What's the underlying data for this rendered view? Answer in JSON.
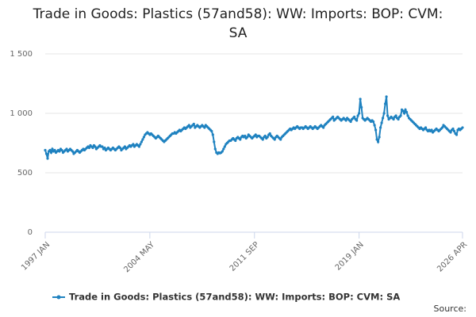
{
  "chart_data": {
    "type": "line",
    "title": "Trade in Goods: Plastics (57and58): WW: Imports: BOP: CVM: SA",
    "source": "Source:",
    "categories": [
      "1997 JAN",
      null,
      null,
      null,
      null,
      null,
      null,
      null,
      null,
      null,
      null,
      null,
      null,
      null,
      null,
      null,
      null,
      null,
      null,
      null,
      null,
      null,
      null,
      null,
      null,
      null,
      null,
      null,
      null,
      null,
      null,
      null,
      null,
      null,
      null,
      null,
      null,
      null,
      null,
      null,
      null,
      null,
      null,
      null,
      null,
      null,
      null,
      null,
      null,
      null,
      null,
      null,
      null,
      null,
      null,
      null,
      null,
      null,
      null,
      null,
      null,
      null,
      null,
      null,
      null,
      null,
      null,
      null,
      null,
      null,
      null,
      null,
      null,
      null,
      null,
      null,
      null,
      null,
      null,
      null,
      null,
      null,
      null,
      null,
      null,
      null,
      null,
      null,
      "2004 MAY",
      null,
      null,
      null,
      null,
      null,
      null,
      null,
      null,
      null,
      null,
      null,
      null,
      null,
      null,
      null,
      null,
      null,
      null,
      null,
      null,
      null,
      null,
      null,
      null,
      null,
      null,
      null,
      null,
      null,
      null,
      null,
      null,
      null,
      null,
      null,
      null,
      null,
      null,
      null,
      null,
      null,
      null,
      null,
      null,
      null,
      null,
      null,
      null,
      null,
      null,
      null,
      null,
      null,
      null,
      null,
      null,
      null,
      null,
      null,
      null,
      null,
      null,
      null,
      null,
      null,
      null,
      null,
      null,
      null,
      null,
      null,
      null,
      null,
      null,
      null,
      null,
      null,
      null,
      null,
      null,
      null,
      null,
      null,
      null,
      null,
      null,
      null,
      "2011 SEP",
      null,
      null,
      null,
      null,
      null,
      null,
      null,
      null,
      null,
      null,
      null,
      null,
      null,
      null,
      null,
      null,
      null,
      null,
      null,
      null,
      null,
      null,
      null,
      null,
      null,
      null,
      null,
      null,
      null,
      null,
      null,
      null,
      null,
      null,
      null,
      null,
      null,
      null,
      null,
      null,
      null,
      null,
      null,
      null,
      null,
      null,
      null,
      null,
      null,
      null,
      null,
      null,
      null,
      null,
      null,
      null,
      null,
      null,
      null,
      null,
      null,
      null,
      null,
      null,
      null,
      null,
      null,
      null,
      null,
      null,
      null,
      null,
      null,
      null,
      null,
      null,
      null,
      null,
      null,
      null,
      null,
      null,
      null,
      null,
      null,
      null,
      null,
      "2019 JAN",
      null,
      null,
      null,
      null,
      null,
      null,
      null,
      null,
      null,
      null,
      null,
      null,
      null,
      null,
      null,
      null,
      null,
      null,
      null,
      null,
      null,
      null,
      null,
      null,
      null,
      null,
      null,
      null,
      null,
      null,
      null,
      null,
      null,
      null,
      null,
      null,
      null,
      null,
      null,
      null,
      null,
      null,
      null,
      null,
      null,
      null,
      null,
      null,
      null,
      null,
      null,
      null,
      null,
      null,
      null,
      null,
      null,
      null,
      null,
      null,
      null,
      null,
      null,
      null,
      null,
      null,
      null,
      null,
      null,
      null,
      null,
      null,
      null,
      null,
      null,
      null,
      null,
      null,
      null,
      null,
      null,
      null,
      null,
      null,
      null,
      null,
      "2026 APR"
    ],
    "series": [
      {
        "name": "Trade in Goods: Plastics (57and58): WW: Imports: BOP: CVM: SA",
        "color": "#1f82c0",
        "values": [
          690,
          660,
          620,
          680,
          690,
          670,
          700,
          680,
          690,
          670,
          680,
          690,
          680,
          700,
          690,
          670,
          680,
          690,
          700,
          680,
          690,
          700,
          690,
          680,
          660,
          670,
          680,
          690,
          680,
          670,
          680,
          690,
          700,
          690,
          700,
          710,
          720,
          710,
          730,
          720,
          710,
          730,
          720,
          700,
          710,
          720,
          730,
          720,
          720,
          700,
          710,
          690,
          700,
          710,
          700,
          690,
          700,
          710,
          700,
          690,
          700,
          710,
          720,
          710,
          690,
          700,
          710,
          720,
          700,
          710,
          720,
          730,
          720,
          730,
          740,
          720,
          730,
          740,
          730,
          720,
          740,
          760,
          780,
          800,
          820,
          830,
          840,
          830,
          820,
          830,
          820,
          810,
          800,
          790,
          800,
          810,
          800,
          790,
          780,
          770,
          760,
          770,
          780,
          790,
          800,
          810,
          820,
          830,
          830,
          840,
          830,
          840,
          850,
          860,
          850,
          860,
          870,
          880,
          870,
          880,
          890,
          900,
          880,
          890,
          900,
          910,
          880,
          890,
          900,
          890,
          880,
          890,
          900,
          890,
          880,
          900,
          890,
          880,
          870,
          860,
          850,
          820,
          760,
          700,
          670,
          660,
          670,
          665,
          670,
          680,
          700,
          720,
          740,
          750,
          760,
          770,
          770,
          780,
          790,
          780,
          770,
          790,
          800,
          790,
          780,
          800,
          810,
          800,
          810,
          790,
          800,
          820,
          810,
          800,
          790,
          800,
          810,
          820,
          800,
          810,
          810,
          800,
          790,
          780,
          800,
          810,
          790,
          800,
          820,
          830,
          810,
          800,
          790,
          780,
          800,
          810,
          800,
          790,
          780,
          800,
          810,
          820,
          830,
          840,
          850,
          860,
          870,
          860,
          870,
          880,
          870,
          880,
          890,
          880,
          870,
          880,
          880,
          870,
          880,
          890,
          880,
          870,
          880,
          890,
          880,
          870,
          880,
          890,
          880,
          870,
          880,
          890,
          900,
          890,
          880,
          900,
          910,
          920,
          930,
          940,
          950,
          960,
          970,
          940,
          950,
          960,
          970,
          960,
          950,
          940,
          950,
          960,
          950,
          940,
          960,
          950,
          940,
          930,
          950,
          960,
          970,
          950,
          940,
          980,
          1000,
          1120,
          1050,
          960,
          950,
          940,
          950,
          960,
          950,
          940,
          930,
          940,
          930,
          900,
          860,
          780,
          760,
          800,
          880,
          920,
          960,
          1000,
          1080,
          1140,
          980,
          950,
          960,
          970,
          960,
          950,
          970,
          980,
          960,
          950,
          970,
          980,
          1030,
          1020,
          1000,
          1030,
          1010,
          980,
          960,
          950,
          940,
          930,
          920,
          910,
          900,
          890,
          880,
          870,
          880,
          870,
          860,
          870,
          880,
          860,
          850,
          860,
          850,
          860,
          840,
          850,
          860,
          870,
          860,
          850,
          860,
          870,
          880,
          900,
          890,
          880,
          870,
          860,
          850,
          840,
          860,
          870,
          850,
          830,
          820,
          860,
          870,
          860,
          870,
          880
        ]
      }
    ],
    "ylim": [
      0,
      1500
    ],
    "yticks": [
      0,
      500,
      {
        "value": 1000,
        "label": "1 000"
      },
      {
        "value": 1500,
        "label": "1 500"
      }
    ],
    "grid": true
  }
}
